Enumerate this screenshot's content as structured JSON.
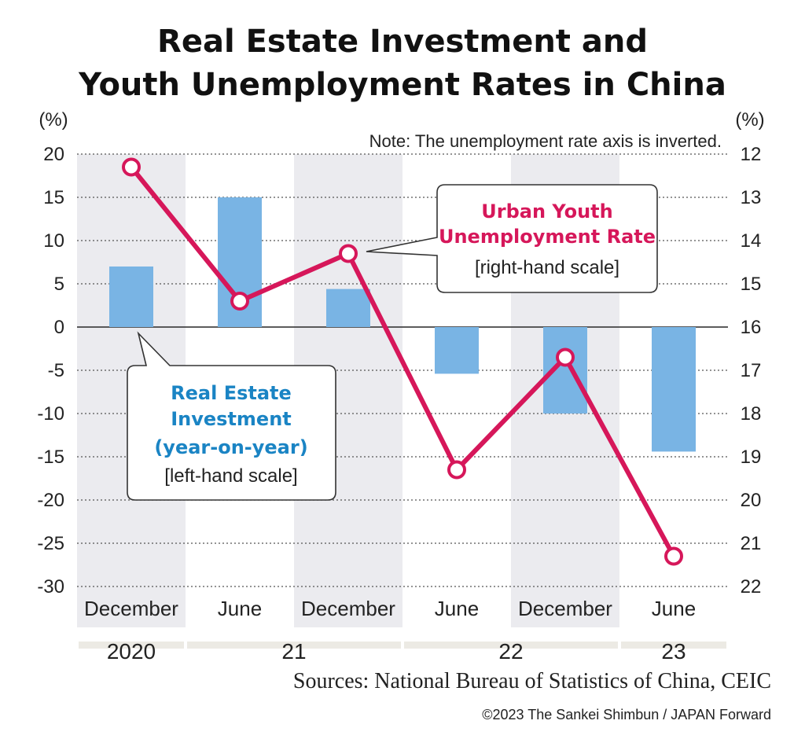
{
  "title_line1": "Real Estate Investment and",
  "title_line2": "Youth Unemployment Rates in China",
  "left_unit": "(%)",
  "right_unit": "(%)",
  "note": "Note: The unemployment rate axis is inverted.",
  "callout_unemployment": {
    "line1": "Urban Youth",
    "line2": "Unemployment Rate",
    "line3": "[right-hand scale]"
  },
  "callout_investment": {
    "line1": "Real Estate",
    "line2": "Investment",
    "line3": "(year-on-year)",
    "line4": "[left-hand scale]"
  },
  "sources": "Sources: National Bureau of Statistics of China, CEIC",
  "copyright": "©2023 The Sankei Shimbun / JAPAN Forward",
  "colors": {
    "bar": "#79b4e4",
    "line": "#d6175a",
    "shade": "#ebebef",
    "year_band": "#eceae4"
  },
  "chart_data": {
    "type": "bar+line",
    "categories": [
      "December",
      "June",
      "December",
      "June",
      "December",
      "June"
    ],
    "years": [
      {
        "label": "2020",
        "start": 0,
        "end": 0
      },
      {
        "label": "21",
        "start": 1,
        "end": 2
      },
      {
        "label": "22",
        "start": 3,
        "end": 4
      },
      {
        "label": "23",
        "start": 5,
        "end": 5
      }
    ],
    "left_axis": {
      "ylim": [
        -30,
        20
      ],
      "ticks": [
        20,
        15,
        10,
        5,
        0,
        -5,
        -10,
        -15,
        -20,
        -25,
        -30
      ]
    },
    "right_axis": {
      "ylim": [
        12,
        22
      ],
      "inverted": true,
      "ticks": [
        12,
        13,
        14,
        15,
        16,
        17,
        18,
        19,
        20,
        21,
        22
      ]
    },
    "series": [
      {
        "name": "Real Estate Investment (year-on-year)",
        "kind": "bar",
        "axis": "left",
        "values": [
          7.0,
          15.0,
          4.4,
          -5.4,
          -10.0,
          -14.4
        ]
      },
      {
        "name": "Urban Youth Unemployment Rate",
        "kind": "line",
        "axis": "right",
        "values": [
          12.3,
          15.4,
          14.3,
          19.3,
          16.7,
          21.3
        ]
      }
    ],
    "shaded_categories": [
      0,
      2,
      4
    ],
    "grid": true
  }
}
